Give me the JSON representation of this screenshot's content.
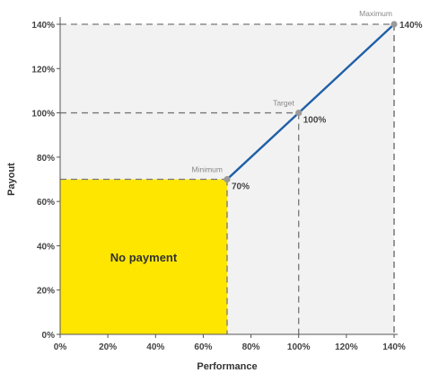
{
  "chart_data": {
    "type": "line",
    "title": "",
    "xlabel": "Performance",
    "ylabel": "Payout",
    "xlim": [
      0,
      140
    ],
    "ylim": [
      0,
      140
    ],
    "x_ticks": [
      "0%",
      "20%",
      "40%",
      "60%",
      "80%",
      "100%",
      "120%",
      "140%"
    ],
    "y_ticks": [
      "0%",
      "20%",
      "40%",
      "60%",
      "80%",
      "100%",
      "120%",
      "140%"
    ],
    "series": [
      {
        "values": [
          [
            70,
            70
          ],
          [
            100,
            100
          ],
          [
            140,
            140
          ]
        ],
        "color": "#1f5fa8"
      }
    ],
    "annotations": [
      {
        "label": "Minimum",
        "value_label": "70%",
        "x": 70,
        "y": 70
      },
      {
        "label": "Target",
        "value_label": "100%",
        "x": 100,
        "y": 100
      },
      {
        "label": "Maximum",
        "value_label": "140%",
        "x": 140,
        "y": 140
      }
    ],
    "region": {
      "label": "No payment",
      "x": [
        0,
        70
      ],
      "y": [
        0,
        70
      ],
      "color": "#ffe600"
    },
    "plot_background": "#f2f2f2",
    "marker_color": "#9a9a9a",
    "guide_color": "#777777",
    "grid": false
  }
}
